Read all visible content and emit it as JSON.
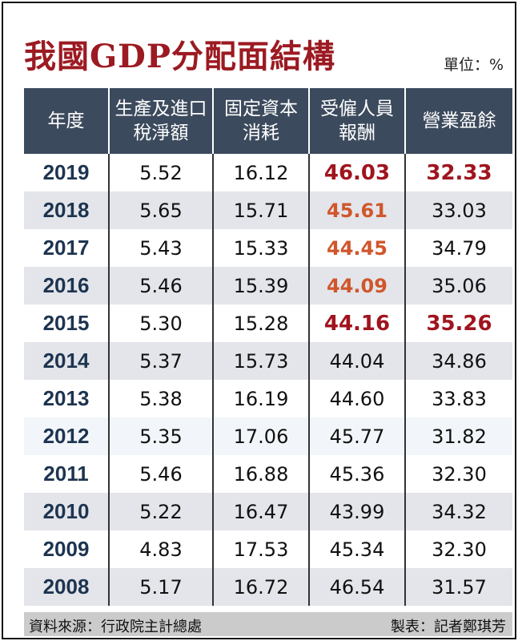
{
  "header": {
    "title": "我國GDP分配面結構",
    "unit": "單位：%"
  },
  "table": {
    "columns": [
      "年度",
      "生產及進口稅淨額",
      "固定資本消耗",
      "受僱人員報酬",
      "營業盈餘"
    ],
    "rows": [
      [
        "2019",
        "5.52",
        "16.12",
        "46.03",
        "32.33"
      ],
      [
        "2018",
        "5.65",
        "15.71",
        "45.61",
        "33.03"
      ],
      [
        "2017",
        "5.43",
        "15.33",
        "44.45",
        "34.79"
      ],
      [
        "2016",
        "5.46",
        "15.39",
        "44.09",
        "35.06"
      ],
      [
        "2015",
        "5.30",
        "15.28",
        "44.16",
        "35.26"
      ],
      [
        "2014",
        "5.37",
        "15.73",
        "44.04",
        "34.86"
      ],
      [
        "2013",
        "5.38",
        "16.19",
        "44.60",
        "33.83"
      ],
      [
        "2012",
        "5.35",
        "17.06",
        "45.77",
        "31.82"
      ],
      [
        "2011",
        "5.46",
        "16.88",
        "45.36",
        "32.30"
      ],
      [
        "2010",
        "5.22",
        "16.47",
        "43.99",
        "34.32"
      ],
      [
        "2009",
        "4.83",
        "17.53",
        "45.34",
        "32.30"
      ],
      [
        "2008",
        "5.17",
        "16.72",
        "46.54",
        "31.57"
      ]
    ]
  },
  "footer": {
    "source": "資料來源：行政院主計總處",
    "credit": "製表：記者鄭琪芳"
  }
}
